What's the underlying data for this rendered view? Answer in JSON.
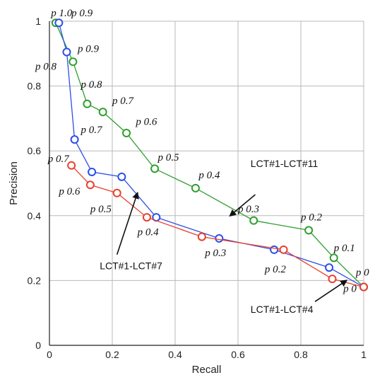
{
  "chart_data": {
    "type": "line",
    "xlabel": "Recall",
    "ylabel": "Precision",
    "xlim": [
      0,
      1
    ],
    "ylim": [
      0,
      1
    ],
    "xticks": [
      "0",
      "0.2",
      "0.4",
      "0.6",
      "0.8",
      "1"
    ],
    "yticks": [
      "0",
      "0.2",
      "0.4",
      "0.6",
      "0.8",
      "1"
    ],
    "grid": true,
    "series": [
      {
        "name": "LCT#1-LCT#11",
        "color": "#2e9e2e",
        "points": [
          {
            "x": 0.02,
            "y": 0.995
          },
          {
            "x": 0.075,
            "y": 0.875
          },
          {
            "x": 0.12,
            "y": 0.745
          },
          {
            "x": 0.17,
            "y": 0.72
          },
          {
            "x": 0.245,
            "y": 0.655
          },
          {
            "x": 0.335,
            "y": 0.545
          },
          {
            "x": 0.465,
            "y": 0.485
          },
          {
            "x": 0.65,
            "y": 0.385
          },
          {
            "x": 0.825,
            "y": 0.355
          },
          {
            "x": 0.905,
            "y": 0.27
          },
          {
            "x": 1.0,
            "y": 0.18
          }
        ]
      },
      {
        "name": "LCT#1-LCT#7",
        "color": "#2b4ee8",
        "points": [
          {
            "x": 0.03,
            "y": 0.995
          },
          {
            "x": 0.055,
            "y": 0.905
          },
          {
            "x": 0.08,
            "y": 0.635
          },
          {
            "x": 0.135,
            "y": 0.535
          },
          {
            "x": 0.23,
            "y": 0.52
          },
          {
            "x": 0.34,
            "y": 0.395
          },
          {
            "x": 0.54,
            "y": 0.33
          },
          {
            "x": 0.715,
            "y": 0.295
          },
          {
            "x": 0.89,
            "y": 0.24
          },
          {
            "x": 1.0,
            "y": 0.18
          }
        ]
      },
      {
        "name": "LCT#1-LCT#4",
        "color": "#e8412b",
        "points": [
          {
            "x": 0.07,
            "y": 0.555
          },
          {
            "x": 0.13,
            "y": 0.495
          },
          {
            "x": 0.215,
            "y": 0.47
          },
          {
            "x": 0.31,
            "y": 0.395
          },
          {
            "x": 0.485,
            "y": 0.335
          },
          {
            "x": 0.745,
            "y": 0.295
          },
          {
            "x": 0.9,
            "y": 0.205
          },
          {
            "x": 1.0,
            "y": 0.18
          }
        ]
      }
    ],
    "annotations": [
      {
        "text": "p 1.0",
        "x": 0.005,
        "y": 1.015
      },
      {
        "text": "p 0.9",
        "x": 0.07,
        "y": 1.015
      },
      {
        "text": "p 0.9",
        "x": 0.09,
        "y": 0.905
      },
      {
        "text": "p 0.8",
        "x": -0.045,
        "y": 0.85
      },
      {
        "text": "p 0.8",
        "x": 0.1,
        "y": 0.795
      },
      {
        "text": "p 0.7",
        "x": 0.2,
        "y": 0.745
      },
      {
        "text": "p 0.6",
        "x": 0.275,
        "y": 0.68
      },
      {
        "text": "p 0.7",
        "x": 0.1,
        "y": 0.655
      },
      {
        "text": "p 0.5",
        "x": 0.345,
        "y": 0.57
      },
      {
        "text": "p 0.7",
        "x": -0.005,
        "y": 0.565
      },
      {
        "text": "p 0.4",
        "x": 0.475,
        "y": 0.515
      },
      {
        "text": "p 0.6",
        "x": 0.03,
        "y": 0.465
      },
      {
        "text": "p 0.5",
        "x": 0.13,
        "y": 0.41
      },
      {
        "text": "p 0.3",
        "x": 0.6,
        "y": 0.41
      },
      {
        "text": "p 0.2",
        "x": 0.8,
        "y": 0.385
      },
      {
        "text": "p 0.4",
        "x": 0.28,
        "y": 0.34
      },
      {
        "text": "p 0.1",
        "x": 0.905,
        "y": 0.29
      },
      {
        "text": "p 0.3",
        "x": 0.495,
        "y": 0.275
      },
      {
        "text": "p 0.2",
        "x": 0.685,
        "y": 0.225
      },
      {
        "text": "p 0",
        "x": 0.975,
        "y": 0.215
      },
      {
        "text": "p 0",
        "x": 0.935,
        "y": 0.165
      }
    ],
    "callouts": [
      {
        "text": "LCT#1-LCT#11",
        "label_x": 0.64,
        "label_y": 0.55,
        "tail": [
          0.655,
          0.465
        ],
        "head": [
          0.575,
          0.4
        ]
      },
      {
        "text": "LCT#1-LCT#7",
        "label_x": 0.16,
        "label_y": 0.235,
        "tail": [
          0.215,
          0.28
        ],
        "head": [
          0.28,
          0.47
        ]
      },
      {
        "text": "LCT#1-LCT#4",
        "label_x": 0.64,
        "label_y": 0.1,
        "tail": [
          0.845,
          0.135
        ],
        "head": [
          0.945,
          0.2
        ]
      }
    ]
  }
}
